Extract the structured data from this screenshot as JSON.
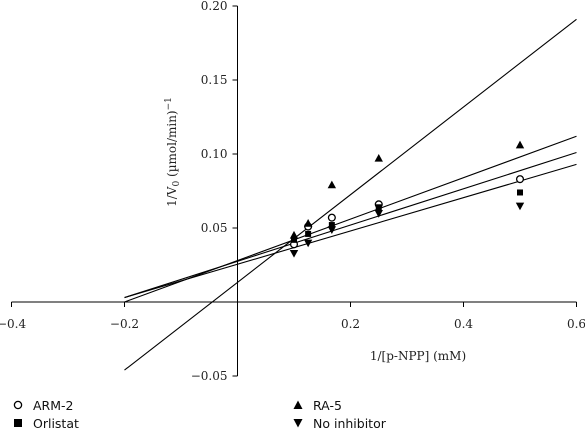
{
  "chart_data": {
    "type": "scatter",
    "xlabel": "1/[p-NPP] (mM)",
    "ylabel": "1/V",
    "ylabel_sub": "0",
    "ylabel_unit": " (µmol/min)",
    "ylabel_sup": "−1",
    "xlim": [
      -0.4,
      0.6
    ],
    "ylim": [
      -0.05,
      0.2
    ],
    "x_ticks": [
      -0.4,
      -0.2,
      0.2,
      0.4,
      0.6
    ],
    "x_tick_labels": [
      "−0.4",
      "−0.2",
      "0.2",
      "0.4",
      "0.6"
    ],
    "y_ticks": [
      -0.05,
      0.05,
      0.1,
      0.15,
      0.2
    ],
    "y_tick_labels": [
      "−0.05",
      "0.05",
      "0.10",
      "0.15",
      "0.20"
    ],
    "grid": false,
    "legend_position": "bottom",
    "series": [
      {
        "name": "ARM-2",
        "marker": "circle-open",
        "color": "#000000",
        "x": [
          0.1,
          0.125,
          0.167,
          0.25,
          0.5
        ],
        "y": [
          0.039,
          0.051,
          0.057,
          0.066,
          0.083
        ],
        "fit_line": {
          "x": [
            -0.2,
            0.6
          ],
          "y": [
            0.003,
            0.101
          ]
        }
      },
      {
        "name": "RA-5",
        "marker": "triangle-up",
        "color": "#000000",
        "x": [
          0.1,
          0.125,
          0.167,
          0.25,
          0.5
        ],
        "y": [
          0.045,
          0.053,
          0.079,
          0.097,
          0.106
        ],
        "fit_line": {
          "x": [
            -0.2,
            0.6
          ],
          "y": [
            -0.046,
            0.191
          ]
        }
      },
      {
        "name": "Orlistat",
        "marker": "square-filled",
        "color": "#000000",
        "x": [
          0.1,
          0.125,
          0.167,
          0.25,
          0.5
        ],
        "y": [
          0.042,
          0.046,
          0.052,
          0.064,
          0.074
        ],
        "fit_line": {
          "x": [
            -0.2,
            0.6
          ],
          "y": [
            0.0,
            0.112
          ]
        }
      },
      {
        "name": "No inhibitor",
        "marker": "triangle-down",
        "color": "#000000",
        "x": [
          0.1,
          0.125,
          0.167,
          0.25,
          0.5
        ],
        "y": [
          0.033,
          0.04,
          0.049,
          0.06,
          0.065
        ],
        "fit_line": {
          "x": [
            -0.2,
            0.6
          ],
          "y": [
            0.003,
            0.093
          ]
        }
      }
    ]
  }
}
